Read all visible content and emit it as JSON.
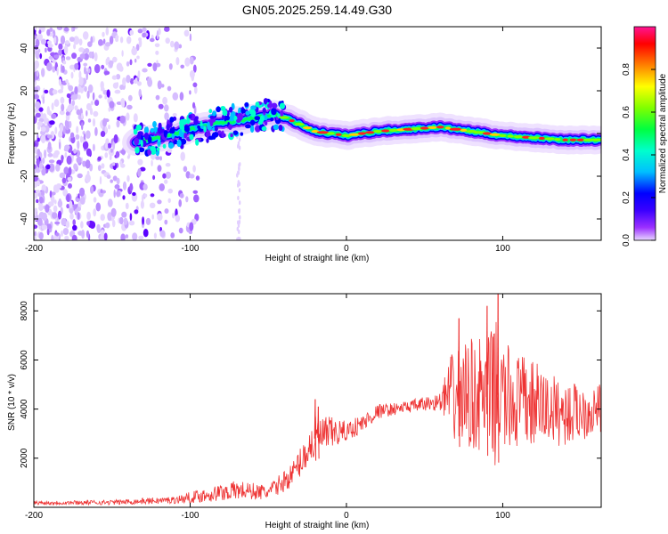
{
  "title": "GN05.2025.259.14.49.G30",
  "chart_data": [
    {
      "type": "heatmap",
      "xlabel": "Height of straight line (km)",
      "ylabel": "Frequency (Hz)",
      "xlim": [
        -200,
        163
      ],
      "ylim": [
        -50,
        50
      ],
      "xticks": [
        -200,
        -100,
        0,
        100
      ],
      "yticks": [
        -40,
        -20,
        0,
        20,
        40
      ],
      "colorbar": {
        "label": "Normalized spectral amplitude",
        "range": [
          0,
          1
        ],
        "ticks": [
          "0.0",
          "0.2",
          "0.4",
          "0.6",
          "0.8"
        ],
        "ticklabel_values": [
          0.0,
          0.2,
          0.4,
          0.6,
          0.8
        ],
        "colors": [
          "#d9c2ff",
          "#9b30ff",
          "#0000ff",
          "#00bfff",
          "#00ff7f",
          "#80ff00",
          "#ffff00",
          "#ff8000",
          "#ff0000",
          "#ff1493"
        ]
      },
      "ridge": {
        "x": [
          -135,
          -120,
          -100,
          -80,
          -60,
          -45,
          -35,
          -20,
          0,
          20,
          40,
          60,
          80,
          100,
          120,
          140,
          163
        ],
        "frequency": [
          -4,
          -2,
          2,
          5,
          7,
          9,
          6,
          1,
          -1,
          1,
          2,
          3,
          1,
          -1,
          -2,
          -3,
          -3
        ]
      },
      "noise_region": {
        "x_from": -200,
        "x_to": -105,
        "frequency_range": [
          -50,
          50
        ]
      }
    },
    {
      "type": "line",
      "xlabel": "Height of straight line (km)",
      "ylabel": "SNR (10 * v/v)",
      "xlim": [
        -200,
        163
      ],
      "ylim": [
        0,
        8700
      ],
      "xticks": [
        -200,
        -100,
        0,
        100
      ],
      "yticks": [
        2000,
        4000,
        6000,
        8000
      ],
      "color": "#ee3333",
      "envelope": {
        "x": [
          -200,
          -150,
          -110,
          -90,
          -70,
          -50,
          -35,
          -25,
          -20,
          -10,
          0,
          10,
          20,
          30,
          40,
          50,
          60,
          65,
          70,
          80,
          90,
          95,
          100,
          110,
          120,
          130,
          140,
          150,
          163
        ],
        "mean": [
          180,
          200,
          300,
          500,
          700,
          600,
          1300,
          2300,
          2800,
          3000,
          3100,
          3400,
          3900,
          4000,
          4100,
          4200,
          4300,
          4500,
          4500,
          4600,
          4500,
          4700,
          4400,
          4300,
          4200,
          4000,
          3800,
          3900,
          4000
        ],
        "spread": [
          80,
          100,
          150,
          300,
          400,
          300,
          500,
          700,
          900,
          700,
          400,
          400,
          300,
          250,
          250,
          300,
          350,
          1500,
          2000,
          2300,
          2400,
          3000,
          2400,
          2000,
          1800,
          1500,
          1300,
          1200,
          1000
        ]
      },
      "peaks": [
        {
          "x": 97,
          "y": 8700
        },
        {
          "x": 90,
          "y": 8200
        },
        {
          "x": 72,
          "y": 7700
        },
        {
          "x": -20,
          "y": 4400
        },
        {
          "x": -18,
          "y": 4100
        }
      ]
    }
  ]
}
